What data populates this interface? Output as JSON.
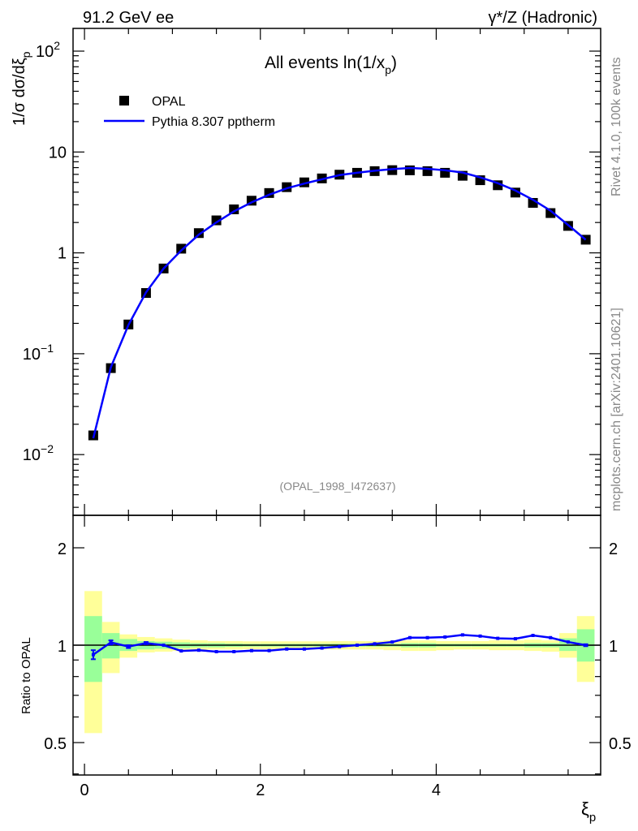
{
  "header": {
    "left": "91.2 GeV ee",
    "right": "γ*/Z (Hadronic)"
  },
  "side": {
    "rivet": "Rivet 4.1.0,  100k events",
    "mcplots": "mcplots.cern.ch [arXiv:2401.10621]"
  },
  "colors": {
    "data": "#000000",
    "mc": "#0000ff",
    "band_stat": "#99ff99",
    "band_total": "#ffff99"
  },
  "chart_data": [
    {
      "type": "scatter",
      "title": "All events ln(1/x",
      "title_sub": "p",
      "title_end": ")",
      "ylabel": "1/σ  dσ/dξ",
      "ylabel_sub": "p",
      "analysis": "(OPAL_1998_I472637)",
      "yscale": "log",
      "ylim": [
        0.0025,
        168
      ],
      "xlim": [
        -0.13,
        5.87
      ],
      "yticks": [
        {
          "v": 100,
          "base": "10",
          "exp": "2"
        },
        {
          "v": 10,
          "base": "10",
          "exp": ""
        },
        {
          "v": 1,
          "base": "1",
          "exp": ""
        },
        {
          "v": 0.1,
          "base": "10",
          "exp": "−1"
        },
        {
          "v": 0.01,
          "base": "10",
          "exp": "−2"
        }
      ],
      "legend": {
        "placement": "top-left",
        "entries": [
          "OPAL",
          "Pythia 8.307 pptherm"
        ]
      },
      "x": [
        0.1,
        0.3,
        0.5,
        0.7,
        0.9,
        1.1,
        1.3,
        1.5,
        1.7,
        1.9,
        2.1,
        2.3,
        2.5,
        2.7,
        2.9,
        3.1,
        3.3,
        3.5,
        3.7,
        3.9,
        4.1,
        4.3,
        4.5,
        4.7,
        4.9,
        5.1,
        5.3,
        5.5,
        5.7
      ],
      "series": [
        {
          "name": "OPAL",
          "values": [
            0.0155,
            0.072,
            0.195,
            0.4,
            0.7,
            1.1,
            1.57,
            2.1,
            2.7,
            3.29,
            3.92,
            4.48,
            5.0,
            5.47,
            5.96,
            6.22,
            6.46,
            6.61,
            6.58,
            6.46,
            6.22,
            5.81,
            5.25,
            4.68,
            3.96,
            3.13,
            2.48,
            1.85,
            1.35
          ]
        },
        {
          "name": "Pythia 8.307 pptherm",
          "values": [
            0.0145,
            0.0734,
            0.193,
            0.406,
            0.7,
            1.056,
            1.515,
            2.006,
            2.58,
            3.165,
            3.77,
            4.36,
            4.865,
            5.36,
            5.9,
            6.22,
            6.52,
            6.76,
            6.94,
            6.82,
            6.59,
            6.25,
            5.6,
            4.91,
            4.15,
            3.36,
            2.62,
            1.89,
            1.35
          ]
        }
      ]
    },
    {
      "type": "line",
      "ylabel": "Ratio to OPAL",
      "xlabel": "ξ",
      "xlabel_sub": "p",
      "yscale": "log",
      "ylim": [
        0.397,
        2.52
      ],
      "xlim": [
        -0.13,
        5.87
      ],
      "yticks": [
        {
          "v": 2,
          "label": "2"
        },
        {
          "v": 1,
          "label": "1"
        },
        {
          "v": 0.5,
          "label": "0.5"
        }
      ],
      "xticks": [
        {
          "v": 0,
          "label": "0"
        },
        {
          "v": 2,
          "label": "2"
        },
        {
          "v": 4,
          "label": "4"
        }
      ],
      "x": [
        0.1,
        0.3,
        0.5,
        0.7,
        0.9,
        1.1,
        1.3,
        1.5,
        1.7,
        1.9,
        2.1,
        2.3,
        2.5,
        2.7,
        2.9,
        3.1,
        3.3,
        3.5,
        3.7,
        3.9,
        4.1,
        4.3,
        4.5,
        4.7,
        4.9,
        5.1,
        5.3,
        5.5,
        5.7
      ],
      "ratio": [
        0.935,
        1.02,
        0.99,
        1.015,
        1.0,
        0.96,
        0.965,
        0.955,
        0.955,
        0.962,
        0.962,
        0.973,
        0.973,
        0.98,
        0.99,
        1.0,
        1.01,
        1.023,
        1.055,
        1.055,
        1.06,
        1.076,
        1.067,
        1.05,
        1.047,
        1.072,
        1.055,
        1.023,
        1.0
      ],
      "ratio_err": [
        0.03,
        0.015,
        0.01,
        0.008,
        0.005,
        0.004,
        0.004,
        0.004,
        0.003,
        0.003,
        0.003,
        0.003,
        0.003,
        0.003,
        0.003,
        0.003,
        0.003,
        0.003,
        0.003,
        0.003,
        0.003,
        0.003,
        0.003,
        0.003,
        0.003,
        0.003,
        0.004,
        0.005,
        0.007
      ],
      "stat_band": [
        [
          0.77,
          1.23
        ],
        [
          0.91,
          1.09
        ],
        [
          0.96,
          1.045
        ],
        [
          0.97,
          1.03
        ],
        [
          0.975,
          1.025
        ],
        [
          0.98,
          1.02
        ],
        [
          0.985,
          1.015
        ],
        [
          0.985,
          1.015
        ],
        [
          0.988,
          1.012
        ],
        [
          0.99,
          1.01
        ],
        [
          0.99,
          1.01
        ],
        [
          0.99,
          1.01
        ],
        [
          0.99,
          1.01
        ],
        [
          0.99,
          1.01
        ],
        [
          0.99,
          1.01
        ],
        [
          0.99,
          1.01
        ],
        [
          0.99,
          1.01
        ],
        [
          0.99,
          1.01
        ],
        [
          0.985,
          1.015
        ],
        [
          0.985,
          1.015
        ],
        [
          0.99,
          1.01
        ],
        [
          0.99,
          1.01
        ],
        [
          0.99,
          1.01
        ],
        [
          0.99,
          1.01
        ],
        [
          0.99,
          1.01
        ],
        [
          0.985,
          1.015
        ],
        [
          0.985,
          1.015
        ],
        [
          0.96,
          1.05
        ],
        [
          0.89,
          1.12
        ]
      ],
      "total_band": [
        [
          0.535,
          1.47
        ],
        [
          0.82,
          1.18
        ],
        [
          0.915,
          1.08
        ],
        [
          0.95,
          1.06
        ],
        [
          0.955,
          1.05
        ],
        [
          0.96,
          1.04
        ],
        [
          0.965,
          1.035
        ],
        [
          0.97,
          1.03
        ],
        [
          0.97,
          1.03
        ],
        [
          0.972,
          1.028
        ],
        [
          0.972,
          1.028
        ],
        [
          0.972,
          1.028
        ],
        [
          0.972,
          1.028
        ],
        [
          0.972,
          1.028
        ],
        [
          0.97,
          1.03
        ],
        [
          0.97,
          1.03
        ],
        [
          0.97,
          1.03
        ],
        [
          0.965,
          1.035
        ],
        [
          0.96,
          1.035
        ],
        [
          0.96,
          1.035
        ],
        [
          0.965,
          1.03
        ],
        [
          0.97,
          1.03
        ],
        [
          0.97,
          1.03
        ],
        [
          0.965,
          1.035
        ],
        [
          0.965,
          1.035
        ],
        [
          0.96,
          1.04
        ],
        [
          0.955,
          1.035
        ],
        [
          0.915,
          1.09
        ],
        [
          0.77,
          1.23
        ]
      ]
    }
  ]
}
